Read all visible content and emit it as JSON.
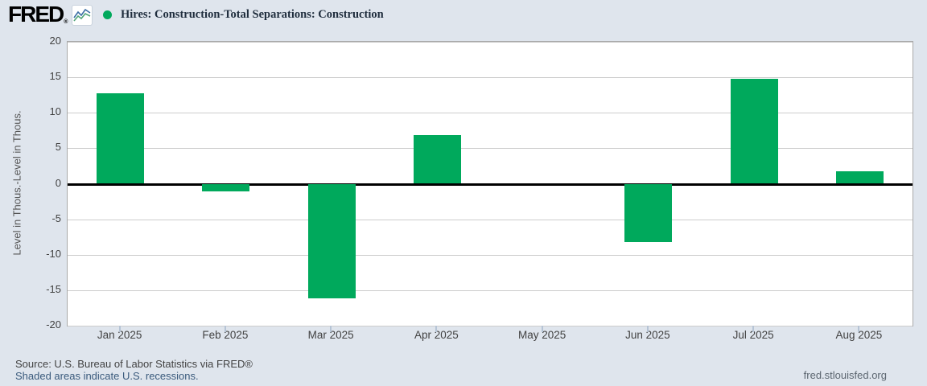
{
  "header": {
    "logo_text": "FRED",
    "logo_mark": "®",
    "legend_marker_color": "#00a95c"
  },
  "chart_data": {
    "type": "bar",
    "title": "Hires: Construction-Total Separations: Construction",
    "categories": [
      "Jan 2025",
      "Feb 2025",
      "Mar 2025",
      "Apr 2025",
      "May 2025",
      "Jun 2025",
      "Jul 2025",
      "Aug 2025"
    ],
    "values": [
      12.7,
      -1.1,
      -16.1,
      6.9,
      0,
      -8.2,
      14.8,
      1.8
    ],
    "ylabel": "Level in Thous.-Level in Thous.",
    "xlabel": "",
    "ylim": [
      -20,
      20
    ],
    "yticks": [
      20,
      15,
      10,
      5,
      0,
      -5,
      -10,
      -15,
      -20
    ],
    "grid": true,
    "zero_line": true,
    "legend_position": "top-left",
    "bar_color": "#00a95c"
  },
  "footer": {
    "source": "Source: U.S. Bureau of Labor Statistics via FRED®",
    "recession_note": "Shaded areas indicate U.S. recessions.",
    "site_link": "fred.stlouisfed.org"
  }
}
